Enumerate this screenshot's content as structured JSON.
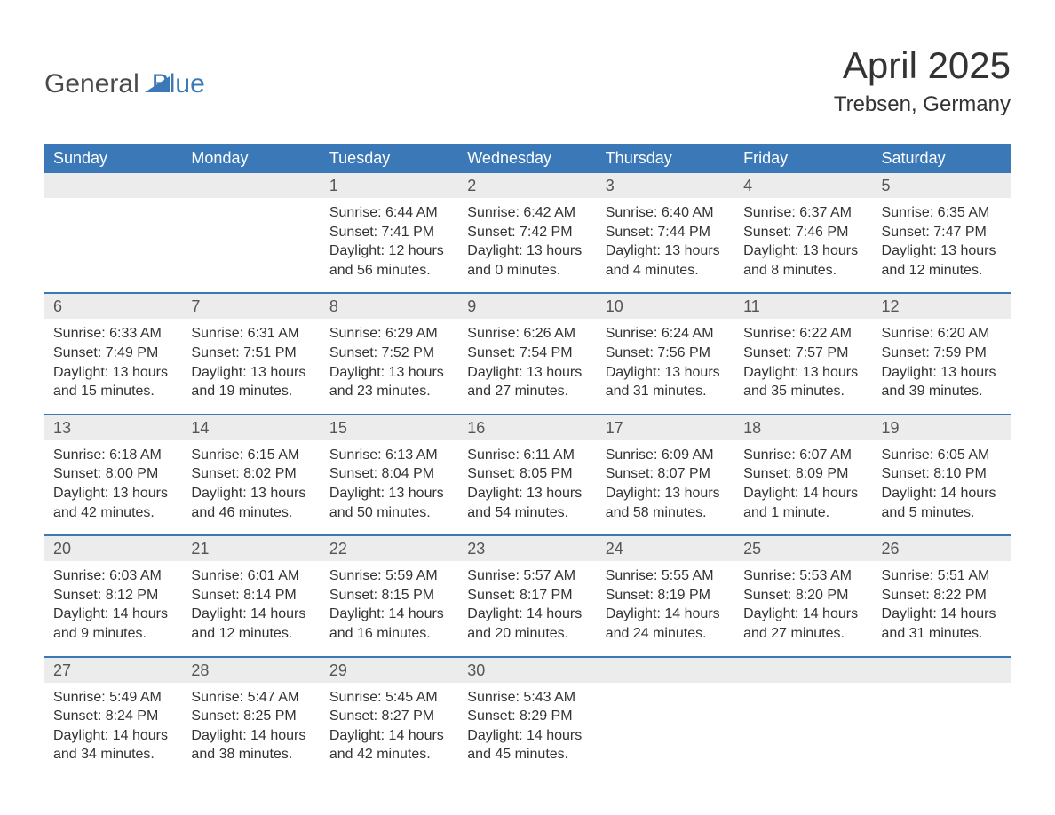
{
  "logo": {
    "word1": "General",
    "word2": "Blue",
    "accent_color": "#3a78b8"
  },
  "title": {
    "month": "April 2025",
    "location": "Trebsen, Germany"
  },
  "colors": {
    "header_bg": "#3a78b8",
    "header_text": "#ffffff",
    "daynum_bg": "#ececec",
    "text": "#333333",
    "separator": "#3a78b8",
    "page_bg": "#ffffff"
  },
  "day_headers": [
    "Sunday",
    "Monday",
    "Tuesday",
    "Wednesday",
    "Thursday",
    "Friday",
    "Saturday"
  ],
  "weeks": [
    {
      "days": [
        {
          "num": "",
          "sunrise": "",
          "sunset": "",
          "day1": "",
          "day2": ""
        },
        {
          "num": "",
          "sunrise": "",
          "sunset": "",
          "day1": "",
          "day2": ""
        },
        {
          "num": "1",
          "sunrise": "Sunrise: 6:44 AM",
          "sunset": "Sunset: 7:41 PM",
          "day1": "Daylight: 12 hours",
          "day2": "and 56 minutes."
        },
        {
          "num": "2",
          "sunrise": "Sunrise: 6:42 AM",
          "sunset": "Sunset: 7:42 PM",
          "day1": "Daylight: 13 hours",
          "day2": "and 0 minutes."
        },
        {
          "num": "3",
          "sunrise": "Sunrise: 6:40 AM",
          "sunset": "Sunset: 7:44 PM",
          "day1": "Daylight: 13 hours",
          "day2": "and 4 minutes."
        },
        {
          "num": "4",
          "sunrise": "Sunrise: 6:37 AM",
          "sunset": "Sunset: 7:46 PM",
          "day1": "Daylight: 13 hours",
          "day2": "and 8 minutes."
        },
        {
          "num": "5",
          "sunrise": "Sunrise: 6:35 AM",
          "sunset": "Sunset: 7:47 PM",
          "day1": "Daylight: 13 hours",
          "day2": "and 12 minutes."
        }
      ]
    },
    {
      "days": [
        {
          "num": "6",
          "sunrise": "Sunrise: 6:33 AM",
          "sunset": "Sunset: 7:49 PM",
          "day1": "Daylight: 13 hours",
          "day2": "and 15 minutes."
        },
        {
          "num": "7",
          "sunrise": "Sunrise: 6:31 AM",
          "sunset": "Sunset: 7:51 PM",
          "day1": "Daylight: 13 hours",
          "day2": "and 19 minutes."
        },
        {
          "num": "8",
          "sunrise": "Sunrise: 6:29 AM",
          "sunset": "Sunset: 7:52 PM",
          "day1": "Daylight: 13 hours",
          "day2": "and 23 minutes."
        },
        {
          "num": "9",
          "sunrise": "Sunrise: 6:26 AM",
          "sunset": "Sunset: 7:54 PM",
          "day1": "Daylight: 13 hours",
          "day2": "and 27 minutes."
        },
        {
          "num": "10",
          "sunrise": "Sunrise: 6:24 AM",
          "sunset": "Sunset: 7:56 PM",
          "day1": "Daylight: 13 hours",
          "day2": "and 31 minutes."
        },
        {
          "num": "11",
          "sunrise": "Sunrise: 6:22 AM",
          "sunset": "Sunset: 7:57 PM",
          "day1": "Daylight: 13 hours",
          "day2": "and 35 minutes."
        },
        {
          "num": "12",
          "sunrise": "Sunrise: 6:20 AM",
          "sunset": "Sunset: 7:59 PM",
          "day1": "Daylight: 13 hours",
          "day2": "and 39 minutes."
        }
      ]
    },
    {
      "days": [
        {
          "num": "13",
          "sunrise": "Sunrise: 6:18 AM",
          "sunset": "Sunset: 8:00 PM",
          "day1": "Daylight: 13 hours",
          "day2": "and 42 minutes."
        },
        {
          "num": "14",
          "sunrise": "Sunrise: 6:15 AM",
          "sunset": "Sunset: 8:02 PM",
          "day1": "Daylight: 13 hours",
          "day2": "and 46 minutes."
        },
        {
          "num": "15",
          "sunrise": "Sunrise: 6:13 AM",
          "sunset": "Sunset: 8:04 PM",
          "day1": "Daylight: 13 hours",
          "day2": "and 50 minutes."
        },
        {
          "num": "16",
          "sunrise": "Sunrise: 6:11 AM",
          "sunset": "Sunset: 8:05 PM",
          "day1": "Daylight: 13 hours",
          "day2": "and 54 minutes."
        },
        {
          "num": "17",
          "sunrise": "Sunrise: 6:09 AM",
          "sunset": "Sunset: 8:07 PM",
          "day1": "Daylight: 13 hours",
          "day2": "and 58 minutes."
        },
        {
          "num": "18",
          "sunrise": "Sunrise: 6:07 AM",
          "sunset": "Sunset: 8:09 PM",
          "day1": "Daylight: 14 hours",
          "day2": "and 1 minute."
        },
        {
          "num": "19",
          "sunrise": "Sunrise: 6:05 AM",
          "sunset": "Sunset: 8:10 PM",
          "day1": "Daylight: 14 hours",
          "day2": "and 5 minutes."
        }
      ]
    },
    {
      "days": [
        {
          "num": "20",
          "sunrise": "Sunrise: 6:03 AM",
          "sunset": "Sunset: 8:12 PM",
          "day1": "Daylight: 14 hours",
          "day2": "and 9 minutes."
        },
        {
          "num": "21",
          "sunrise": "Sunrise: 6:01 AM",
          "sunset": "Sunset: 8:14 PM",
          "day1": "Daylight: 14 hours",
          "day2": "and 12 minutes."
        },
        {
          "num": "22",
          "sunrise": "Sunrise: 5:59 AM",
          "sunset": "Sunset: 8:15 PM",
          "day1": "Daylight: 14 hours",
          "day2": "and 16 minutes."
        },
        {
          "num": "23",
          "sunrise": "Sunrise: 5:57 AM",
          "sunset": "Sunset: 8:17 PM",
          "day1": "Daylight: 14 hours",
          "day2": "and 20 minutes."
        },
        {
          "num": "24",
          "sunrise": "Sunrise: 5:55 AM",
          "sunset": "Sunset: 8:19 PM",
          "day1": "Daylight: 14 hours",
          "day2": "and 24 minutes."
        },
        {
          "num": "25",
          "sunrise": "Sunrise: 5:53 AM",
          "sunset": "Sunset: 8:20 PM",
          "day1": "Daylight: 14 hours",
          "day2": "and 27 minutes."
        },
        {
          "num": "26",
          "sunrise": "Sunrise: 5:51 AM",
          "sunset": "Sunset: 8:22 PM",
          "day1": "Daylight: 14 hours",
          "day2": "and 31 minutes."
        }
      ]
    },
    {
      "days": [
        {
          "num": "27",
          "sunrise": "Sunrise: 5:49 AM",
          "sunset": "Sunset: 8:24 PM",
          "day1": "Daylight: 14 hours",
          "day2": "and 34 minutes."
        },
        {
          "num": "28",
          "sunrise": "Sunrise: 5:47 AM",
          "sunset": "Sunset: 8:25 PM",
          "day1": "Daylight: 14 hours",
          "day2": "and 38 minutes."
        },
        {
          "num": "29",
          "sunrise": "Sunrise: 5:45 AM",
          "sunset": "Sunset: 8:27 PM",
          "day1": "Daylight: 14 hours",
          "day2": "and 42 minutes."
        },
        {
          "num": "30",
          "sunrise": "Sunrise: 5:43 AM",
          "sunset": "Sunset: 8:29 PM",
          "day1": "Daylight: 14 hours",
          "day2": "and 45 minutes."
        },
        {
          "num": "",
          "sunrise": "",
          "sunset": "",
          "day1": "",
          "day2": ""
        },
        {
          "num": "",
          "sunrise": "",
          "sunset": "",
          "day1": "",
          "day2": ""
        },
        {
          "num": "",
          "sunrise": "",
          "sunset": "",
          "day1": "",
          "day2": ""
        }
      ]
    }
  ]
}
